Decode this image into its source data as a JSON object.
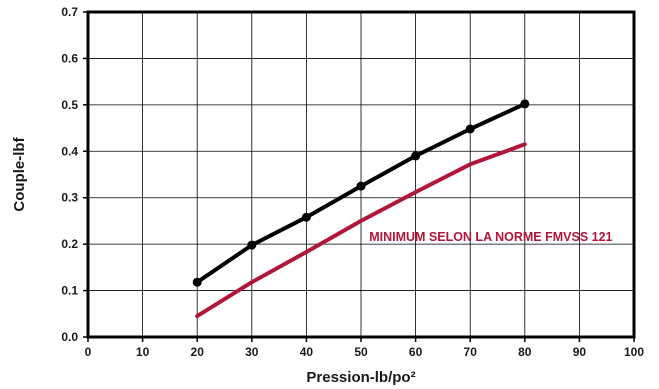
{
  "chart_data": {
    "type": "line",
    "title": "",
    "xlabel": "Pression-lb/po²",
    "ylabel": "Couple-lbf",
    "xlim": [
      0,
      100
    ],
    "ylim": [
      0.0,
      0.7
    ],
    "x_ticks": [
      "0",
      "10",
      "20",
      "30",
      "40",
      "50",
      "60",
      "70",
      "80",
      "90",
      "100"
    ],
    "y_ticks": [
      "0.0",
      "0.1",
      "0.2",
      "0.3",
      "0.4",
      "0.5",
      "0.6",
      "0.7"
    ],
    "grid": true,
    "series": [
      {
        "color": "#000000",
        "markers": true,
        "x": [
          20,
          30,
          40,
          50,
          60,
          70,
          80
        ],
        "y": [
          0.118,
          0.198,
          0.258,
          0.325,
          0.39,
          0.448,
          0.502
        ]
      },
      {
        "name": "MINIMUM SELON LA NORME FMVSS 121",
        "color": "#b0173a",
        "markers": false,
        "x": [
          20,
          30,
          40,
          50,
          60,
          70,
          80
        ],
        "y": [
          0.045,
          0.118,
          0.183,
          0.25,
          0.312,
          0.372,
          0.415
        ]
      }
    ],
    "annotations": [
      {
        "text": "MINIMUM SELON LA NORME FMVSS 121",
        "color": "#b0173a",
        "series": 1
      }
    ]
  }
}
